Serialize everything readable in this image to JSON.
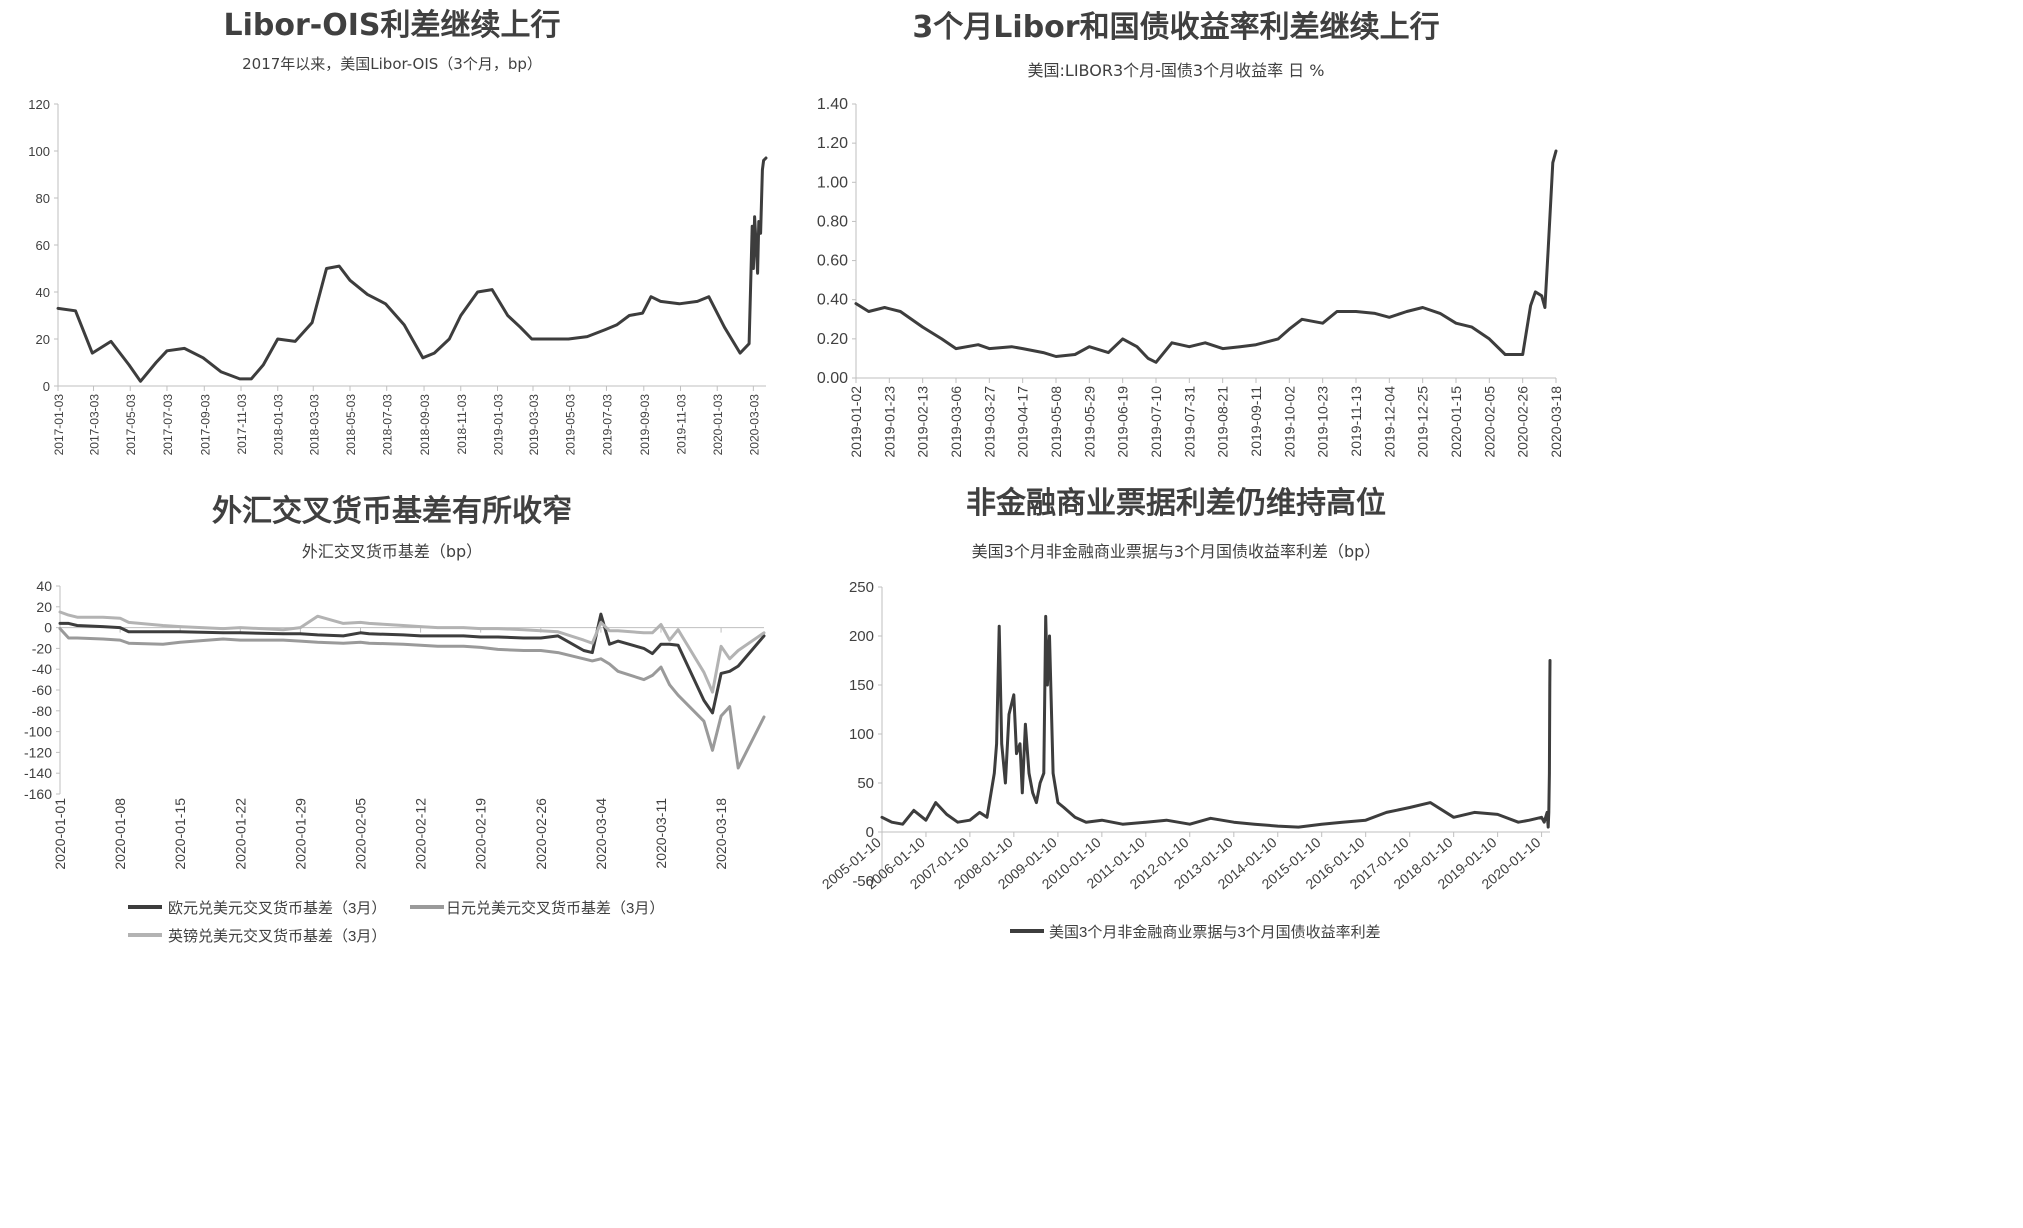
{
  "chart_data": [
    {
      "type": "line",
      "title": "Libor-OIS利差继续上行",
      "subtitle": "2017年以来，美国Libor-OIS（3个月，bp）",
      "ylim": [
        0,
        120
      ],
      "yticks": [
        "0",
        "20",
        "40",
        "60",
        "80",
        "100",
        "120"
      ],
      "x_tick_labels": [
        "2017-01-03",
        "2017-03-03",
        "2017-05-03",
        "2017-07-03",
        "2017-09-03",
        "2017-11-03",
        "2018-01-03",
        "2018-03-03",
        "2018-05-03",
        "2018-07-03",
        "2018-09-03",
        "2018-11-03",
        "2019-01-03",
        "2019-03-03",
        "2019-05-03",
        "2019-07-03",
        "2019-09-03",
        "2019-11-03",
        "2020-01-03",
        "2020-03-03"
      ],
      "grid": false,
      "series": [
        {
          "color": "#3d3d3d",
          "x": [
            "2017-01-03",
            "2017-02-01",
            "2017-03-01",
            "2017-04-01",
            "2017-05-01",
            "2017-05-20",
            "2017-06-15",
            "2017-07-03",
            "2017-08-01",
            "2017-09-01",
            "2017-10-01",
            "2017-11-01",
            "2017-11-20",
            "2017-12-10",
            "2018-01-03",
            "2018-02-01",
            "2018-03-01",
            "2018-03-25",
            "2018-04-15",
            "2018-05-03",
            "2018-06-01",
            "2018-07-01",
            "2018-08-01",
            "2018-09-01",
            "2018-09-20",
            "2018-10-15",
            "2018-11-03",
            "2018-12-01",
            "2018-12-25",
            "2019-01-20",
            "2019-02-10",
            "2019-03-01",
            "2019-04-01",
            "2019-05-01",
            "2019-06-01",
            "2019-07-01",
            "2019-07-20",
            "2019-08-10",
            "2019-09-01",
            "2019-09-15",
            "2019-10-01",
            "2019-11-01",
            "2019-12-01",
            "2019-12-20",
            "2020-01-15",
            "2020-02-10",
            "2020-02-25",
            "2020-03-01",
            "2020-03-03",
            "2020-03-05",
            "2020-03-10",
            "2020-03-12",
            "2020-03-15",
            "2020-03-18",
            "2020-03-20",
            "2020-03-24"
          ],
          "values": [
            33,
            32,
            14,
            19,
            9,
            2,
            10,
            15,
            16,
            12,
            6,
            3,
            3,
            9,
            20,
            19,
            27,
            50,
            51,
            45,
            39,
            35,
            26,
            12,
            14,
            20,
            30,
            40,
            41,
            30,
            25,
            20,
            20,
            20,
            21,
            24,
            26,
            30,
            31,
            38,
            36,
            35,
            36,
            38,
            25,
            14,
            18,
            68,
            50,
            72,
            48,
            70,
            65,
            92,
            96,
            97
          ]
        }
      ]
    },
    {
      "type": "line",
      "title": "3个月Libor和国债收益率利差继续上行",
      "subtitle": "美国:LIBOR3个月-国债3个月收益率 日 %",
      "ylim": [
        0,
        1.4
      ],
      "yticks": [
        "0.00",
        "0.20",
        "0.40",
        "0.60",
        "0.80",
        "1.00",
        "1.20",
        "1.40"
      ],
      "x_tick_labels": [
        "2019-01-02",
        "2019-01-23",
        "2019-02-13",
        "2019-03-06",
        "2019-03-27",
        "2019-04-17",
        "2019-05-08",
        "2019-05-29",
        "2019-06-19",
        "2019-07-10",
        "2019-07-31",
        "2019-08-21",
        "2019-09-11",
        "2019-10-02",
        "2019-10-23",
        "2019-11-13",
        "2019-12-04",
        "2019-12-25",
        "2020-01-15",
        "2020-02-05",
        "2020-02-26",
        "2020-03-18"
      ],
      "grid": false,
      "series": [
        {
          "color": "#3d3d3d",
          "x": [
            "2019-01-02",
            "2019-01-10",
            "2019-01-20",
            "2019-01-30",
            "2019-02-13",
            "2019-02-25",
            "2019-03-06",
            "2019-03-20",
            "2019-03-27",
            "2019-04-10",
            "2019-04-17",
            "2019-04-30",
            "2019-05-08",
            "2019-05-20",
            "2019-05-29",
            "2019-06-10",
            "2019-06-19",
            "2019-06-28",
            "2019-07-05",
            "2019-07-10",
            "2019-07-20",
            "2019-07-31",
            "2019-08-10",
            "2019-08-21",
            "2019-09-01",
            "2019-09-11",
            "2019-09-25",
            "2019-10-02",
            "2019-10-10",
            "2019-10-23",
            "2019-11-01",
            "2019-11-13",
            "2019-11-25",
            "2019-12-04",
            "2019-12-15",
            "2019-12-25",
            "2020-01-05",
            "2020-01-15",
            "2020-01-25",
            "2020-02-05",
            "2020-02-15",
            "2020-02-26",
            "2020-03-02",
            "2020-03-05",
            "2020-03-09",
            "2020-03-11",
            "2020-03-13",
            "2020-03-16",
            "2020-03-18"
          ],
          "values": [
            0.38,
            0.34,
            0.36,
            0.34,
            0.26,
            0.2,
            0.15,
            0.17,
            0.15,
            0.16,
            0.15,
            0.13,
            0.11,
            0.12,
            0.16,
            0.13,
            0.2,
            0.16,
            0.1,
            0.08,
            0.18,
            0.16,
            0.18,
            0.15,
            0.16,
            0.17,
            0.2,
            0.25,
            0.3,
            0.28,
            0.34,
            0.34,
            0.33,
            0.31,
            0.34,
            0.36,
            0.33,
            0.28,
            0.26,
            0.2,
            0.12,
            0.12,
            0.37,
            0.44,
            0.42,
            0.36,
            0.65,
            1.1,
            1.16
          ]
        }
      ]
    },
    {
      "type": "line",
      "title": "外汇交叉货币基差有所收窄",
      "subtitle": "外汇交叉货币基差（bp）",
      "ylim": [
        -160,
        40
      ],
      "yticks": [
        "40",
        "20",
        "0",
        "-20",
        "-40",
        "-60",
        "-80",
        "-100",
        "-120",
        "-140",
        "-160"
      ],
      "x_tick_labels": [
        "2020-01-01",
        "2020-01-08",
        "2020-01-15",
        "2020-01-22",
        "2020-01-29",
        "2020-02-05",
        "2020-02-12",
        "2020-02-19",
        "2020-02-26",
        "2020-03-04",
        "2020-03-11",
        "2020-03-18"
      ],
      "legend": "bottom",
      "grid": false,
      "series": [
        {
          "name": "欧元兑美元交叉货币基差（3月）",
          "color": "#3d3d3d",
          "x": [
            "2020-01-01",
            "2020-01-02",
            "2020-01-03",
            "2020-01-06",
            "2020-01-08",
            "2020-01-09",
            "2020-01-13",
            "2020-01-15",
            "2020-01-20",
            "2020-01-22",
            "2020-01-27",
            "2020-01-29",
            "2020-01-31",
            "2020-02-03",
            "2020-02-05",
            "2020-02-06",
            "2020-02-10",
            "2020-02-12",
            "2020-02-14",
            "2020-02-17",
            "2020-02-19",
            "2020-02-21",
            "2020-02-24",
            "2020-02-26",
            "2020-02-28",
            "2020-03-02",
            "2020-03-03",
            "2020-03-04",
            "2020-03-05",
            "2020-03-06",
            "2020-03-09",
            "2020-03-10",
            "2020-03-11",
            "2020-03-12",
            "2020-03-13",
            "2020-03-16",
            "2020-03-17",
            "2020-03-18",
            "2020-03-19",
            "2020-03-20",
            "2020-03-23"
          ],
          "values": [
            4,
            4,
            2,
            1,
            0,
            -4,
            -4,
            -4,
            -5,
            -5,
            -6,
            -6,
            -7,
            -8,
            -5,
            -6,
            -7,
            -8,
            -8,
            -8,
            -9,
            -9,
            -10,
            -10,
            -8,
            -22,
            -24,
            13,
            -16,
            -13,
            -20,
            -25,
            -16,
            -16,
            -17,
            -70,
            -82,
            -44,
            -42,
            -37,
            -8
          ]
        },
        {
          "name": "日元兑美元交叉货币基差（3月）",
          "color": "#9a9a9a",
          "x": [
            "2020-01-01",
            "2020-01-02",
            "2020-01-03",
            "2020-01-06",
            "2020-01-08",
            "2020-01-09",
            "2020-01-13",
            "2020-01-15",
            "2020-01-20",
            "2020-01-22",
            "2020-01-27",
            "2020-01-29",
            "2020-01-31",
            "2020-02-03",
            "2020-02-05",
            "2020-02-06",
            "2020-02-10",
            "2020-02-12",
            "2020-02-14",
            "2020-02-17",
            "2020-02-19",
            "2020-02-21",
            "2020-02-24",
            "2020-02-26",
            "2020-02-28",
            "2020-03-02",
            "2020-03-03",
            "2020-03-04",
            "2020-03-05",
            "2020-03-06",
            "2020-03-09",
            "2020-03-10",
            "2020-03-11",
            "2020-03-12",
            "2020-03-13",
            "2020-03-16",
            "2020-03-17",
            "2020-03-18",
            "2020-03-19",
            "2020-03-20",
            "2020-03-23"
          ],
          "values": [
            -1,
            -10,
            -10,
            -11,
            -12,
            -15,
            -16,
            -14,
            -11,
            -12,
            -12,
            -13,
            -14,
            -15,
            -14,
            -15,
            -16,
            -17,
            -18,
            -18,
            -19,
            -21,
            -22,
            -22,
            -24,
            -30,
            -32,
            -30,
            -35,
            -42,
            -50,
            -46,
            -38,
            -55,
            -65,
            -90,
            -118,
            -85,
            -76,
            -135,
            -86
          ]
        },
        {
          "name": "英镑兑美元交叉货币基差（3月）",
          "color": "#b3b3b3",
          "x": [
            "2020-01-01",
            "2020-01-02",
            "2020-01-03",
            "2020-01-06",
            "2020-01-08",
            "2020-01-09",
            "2020-01-13",
            "2020-01-15",
            "2020-01-20",
            "2020-01-22",
            "2020-01-27",
            "2020-01-29",
            "2020-01-31",
            "2020-02-03",
            "2020-02-05",
            "2020-02-06",
            "2020-02-10",
            "2020-02-12",
            "2020-02-14",
            "2020-02-17",
            "2020-02-19",
            "2020-02-21",
            "2020-02-24",
            "2020-02-26",
            "2020-02-28",
            "2020-03-02",
            "2020-03-03",
            "2020-03-04",
            "2020-03-05",
            "2020-03-06",
            "2020-03-09",
            "2020-03-10",
            "2020-03-11",
            "2020-03-12",
            "2020-03-13",
            "2020-03-16",
            "2020-03-17",
            "2020-03-18",
            "2020-03-19",
            "2020-03-20",
            "2020-03-23"
          ],
          "values": [
            15,
            12,
            10,
            10,
            9,
            5,
            2,
            1,
            -1,
            0,
            -2,
            0,
            11,
            4,
            5,
            4,
            2,
            1,
            0,
            0,
            -1,
            -1,
            -2,
            -3,
            -4,
            -12,
            -15,
            5,
            -3,
            -3,
            -5,
            -5,
            3,
            -12,
            -2,
            -43,
            -62,
            -18,
            -30,
            -22,
            -5
          ]
        }
      ]
    },
    {
      "type": "line",
      "title": "非金融商业票据利差仍维持高位",
      "subtitle": "美国3个月非金融商业票据与3个月国债收益率利差（bp）",
      "ylim": [
        -50,
        250
      ],
      "yticks": [
        "250",
        "200",
        "150",
        "100",
        "50",
        "0",
        "-50"
      ],
      "x_tick_labels": [
        "2005-01-10",
        "2006-01-10",
        "2007-01-10",
        "2008-01-10",
        "2009-01-10",
        "2010-01-10",
        "2011-01-10",
        "2012-01-10",
        "2013-01-10",
        "2014-01-10",
        "2015-01-10",
        "2016-01-10",
        "2017-01-10",
        "2018-01-10",
        "2019-01-10",
        "2020-01-10"
      ],
      "legend": "bottom",
      "grid": false,
      "series": [
        {
          "name": "美国3个月非金融商业票据与3个月国债收益率利差",
          "color": "#3d3d3d",
          "x": [
            "2005-01-10",
            "2005-04-01",
            "2005-07-01",
            "2005-10-01",
            "2006-01-10",
            "2006-04-01",
            "2006-07-01",
            "2006-10-01",
            "2007-01-10",
            "2007-04-01",
            "2007-06-01",
            "2007-08-01",
            "2007-08-20",
            "2007-09-10",
            "2007-10-01",
            "2007-11-01",
            "2007-12-01",
            "2008-01-10",
            "2008-02-01",
            "2008-03-01",
            "2008-03-20",
            "2008-04-15",
            "2008-05-15",
            "2008-06-15",
            "2008-07-15",
            "2008-08-15",
            "2008-09-15",
            "2008-10-01",
            "2008-10-15",
            "2008-11-01",
            "2008-12-01",
            "2009-01-10",
            "2009-03-01",
            "2009-06-01",
            "2009-09-01",
            "2010-01-10",
            "2010-07-01",
            "2011-01-10",
            "2011-07-01",
            "2012-01-10",
            "2012-07-01",
            "2013-01-10",
            "2013-07-01",
            "2014-01-10",
            "2014-07-01",
            "2015-01-10",
            "2015-07-01",
            "2016-01-10",
            "2016-07-01",
            "2017-01-10",
            "2017-07-01",
            "2018-01-10",
            "2018-07-01",
            "2019-01-10",
            "2019-07-01",
            "2019-10-01",
            "2020-01-10",
            "2020-02-01",
            "2020-02-25",
            "2020-03-05",
            "2020-03-10",
            "2020-03-15",
            "2020-03-18",
            "2020-03-20"
          ],
          "values": [
            15,
            10,
            8,
            22,
            12,
            30,
            18,
            10,
            12,
            20,
            15,
            60,
            90,
            210,
            90,
            50,
            120,
            140,
            80,
            90,
            40,
            110,
            60,
            40,
            30,
            50,
            60,
            220,
            150,
            200,
            60,
            30,
            25,
            15,
            10,
            12,
            8,
            10,
            12,
            8,
            14,
            10,
            8,
            6,
            5,
            8,
            10,
            12,
            20,
            25,
            30,
            15,
            20,
            18,
            10,
            12,
            15,
            10,
            20,
            5,
            20,
            60,
            150,
            175
          ]
        }
      ]
    }
  ]
}
